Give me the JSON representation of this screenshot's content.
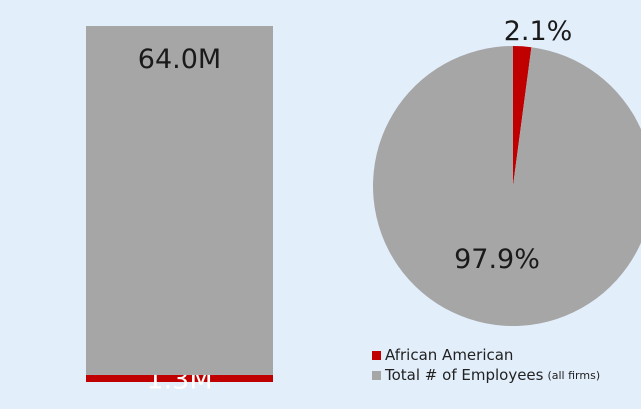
{
  "chart_data": [
    {
      "type": "bar",
      "stacked": true,
      "categories": [
        ""
      ],
      "series": [
        {
          "name": "African American",
          "values": [
            1.3
          ],
          "label": "1.3M",
          "color": "#c00000"
        },
        {
          "name": "Total # of Employees",
          "values": [
            64.0
          ],
          "label": "64.0M",
          "color": "#a6a6a6"
        }
      ],
      "title": "",
      "xlabel": "",
      "ylabel": "",
      "ylim": [
        0,
        65.3
      ],
      "grid": false
    },
    {
      "type": "pie",
      "slices": [
        {
          "name": "African American",
          "value": 2.1,
          "label": "2.1%",
          "color": "#c00000"
        },
        {
          "name": "Total # of Employees",
          "value": 97.9,
          "label": "97.9%",
          "color": "#a6a6a6"
        }
      ],
      "start_angle_deg": 0,
      "direction": "clockwise",
      "title": ""
    }
  ],
  "legend": {
    "placement": "bottom-right",
    "items": [
      {
        "label": "African American",
        "note": "",
        "color": "#c00000"
      },
      {
        "label": "Total # of Employees",
        "note": "(all firms)",
        "color": "#a6a6a6"
      }
    ]
  },
  "colors": {
    "background": "#e3eefb",
    "label_dark": "#1a1a1a",
    "label_light": "#ffffff"
  }
}
